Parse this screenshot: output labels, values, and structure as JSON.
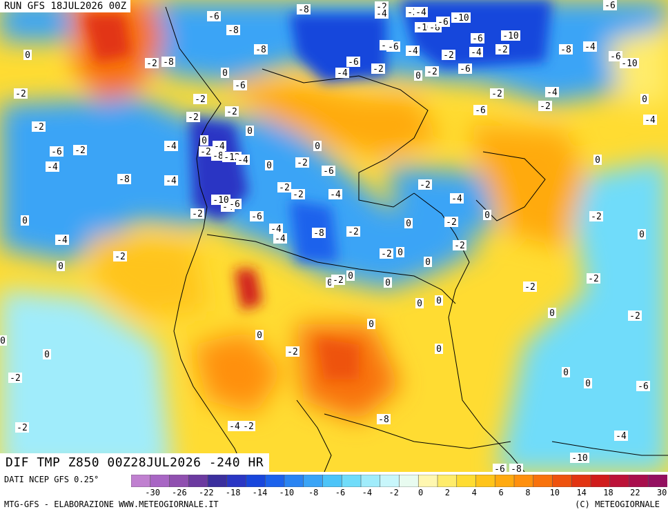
{
  "header": {
    "run_label": "RUN GFS 18JUL2026 00Z",
    "map_title": "DIF TMP Z850 00Z28JUL2026 -240 HR"
  },
  "footer": {
    "source": "DATI NCEP GFS 0.25°",
    "credit": "MTG-GFS - ELABORAZIONE WWW.METEOGIORNALE.IT",
    "copyright": "(C) METEOGIORNALE"
  },
  "legend": {
    "tick_labels": [
      "-30",
      "-26",
      "-22",
      "-18",
      "-14",
      "-10",
      "-8",
      "-6",
      "-4",
      "-2",
      "0",
      "2",
      "4",
      "6",
      "8",
      "10",
      "14",
      "18",
      "22",
      "30"
    ],
    "colors": [
      "#c080d0",
      "#a866c4",
      "#9050b0",
      "#6c3aa0",
      "#3b2f9e",
      "#2a36c4",
      "#1846dc",
      "#1c62ec",
      "#2a84f2",
      "#3aa4f6",
      "#4cc4f8",
      "#70dcfa",
      "#a0ecfb",
      "#c8f6fb",
      "#e8fbf0",
      "#fff7b0",
      "#ffec6a",
      "#ffdc32",
      "#ffc41a",
      "#ffaa10",
      "#ff900e",
      "#f8720c",
      "#ee520e",
      "#e23412",
      "#d01c1c",
      "#bc1238",
      "#a80e4c",
      "#941060"
    ]
  },
  "map": {
    "field": "850 hPa temperature anomaly (°C)",
    "contour_labels": [
      "-6",
      "-8",
      "-2",
      "-4",
      "-2",
      "-4",
      "-10",
      "-6",
      "-8",
      "-10",
      "-8",
      "-6",
      "-10",
      "-6",
      "-8",
      "-4",
      "-8",
      "-6",
      "-4",
      "-2",
      "-4",
      "-2",
      "-6",
      "-10",
      "-8",
      "-6",
      "-4",
      "-2",
      "0",
      "-2",
      "-6",
      "-2",
      "-4",
      "-6",
      "-2",
      "0",
      "-4",
      "-8",
      "-2",
      "0",
      "-2",
      "-2",
      "-2",
      "0",
      "-6",
      "-2",
      "0",
      "-2",
      "0",
      "-4",
      "-2",
      "-8",
      "-12",
      "-4",
      "0",
      "-2",
      "-6",
      "0",
      "-4",
      "-2",
      "-6",
      "-4",
      "-8",
      "-4",
      "-2",
      "-2",
      "-4",
      "-2",
      "-4",
      "-4",
      "-6",
      "-10",
      "-2",
      "-6",
      "-4",
      "-4",
      "-8",
      "-2",
      "0",
      "-2",
      "0",
      "0",
      "-4",
      "-2",
      "0",
      "-2",
      "0",
      "0",
      "-2",
      "0",
      "-2",
      "0",
      "0",
      "-2",
      "0",
      "0",
      "0",
      "0",
      "0",
      "-2",
      "0",
      "-2",
      "-2",
      "0",
      "-2",
      "0",
      "0",
      "-2",
      "0",
      "0",
      "0"
    ],
    "color_fills": {
      "cold": "#1846dc",
      "cool": "#3aa4f6",
      "neutral": "#e8fbf0",
      "warm": "#ffdc32",
      "hot": "#f8720c",
      "coast": "#000000"
    }
  }
}
